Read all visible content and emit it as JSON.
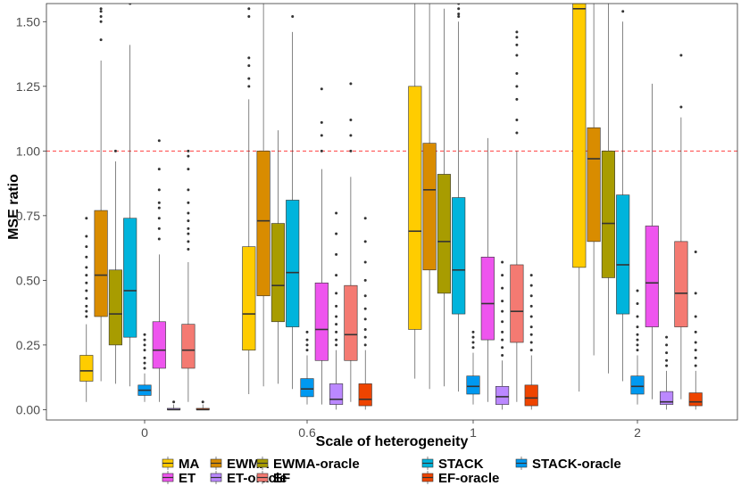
{
  "chart_data": {
    "type": "boxplot",
    "xlabel": "Scale of heterogeneity",
    "ylabel": "MSE ratio",
    "ylim": [
      -0.04,
      1.57
    ],
    "yticks": [
      "0.00",
      "0.25",
      "0.50",
      "0.75",
      "1.00",
      "1.25",
      "1.50"
    ],
    "ytick_values": [
      0,
      0.25,
      0.5,
      0.75,
      1.0,
      1.25,
      1.5
    ],
    "categories": [
      "0",
      "0.6",
      "1",
      "2"
    ],
    "reference_line": {
      "y": 1.0,
      "color": "#ff0000",
      "style": "dashed"
    },
    "legend_position": "bottom",
    "series": [
      {
        "name": "MA",
        "color": "#FFCC00",
        "boxes": [
          {
            "q1": 0.11,
            "median": 0.15,
            "q3": 0.21,
            "wlo": 0.03,
            "whi": 0.33,
            "out": [
              0.36,
              0.38,
              0.4,
              0.43,
              0.46,
              0.49,
              0.52,
              0.55,
              0.59,
              0.63,
              0.67,
              0.74
            ]
          },
          {
            "q1": 0.23,
            "median": 0.37,
            "q3": 0.63,
            "wlo": 0.06,
            "whi": 1.2,
            "out": [
              1.25,
              1.28,
              1.33,
              1.36,
              1.52,
              1.55
            ]
          },
          {
            "q1": 0.31,
            "median": 0.69,
            "q3": 1.25,
            "wlo": 0.12,
            "whi": 1.57,
            "out": []
          },
          {
            "q1": 0.55,
            "median": 1.55,
            "q3": 1.57,
            "wlo": 0.07,
            "whi": 1.57,
            "out": []
          }
        ]
      },
      {
        "name": "EWMA",
        "color": "#D98C00",
        "boxes": [
          {
            "q1": 0.36,
            "median": 0.52,
            "q3": 0.77,
            "wlo": 0.11,
            "whi": 1.35,
            "out": [
              1.43,
              1.5,
              1.52,
              1.54,
              1.55
            ]
          },
          {
            "q1": 0.44,
            "median": 0.73,
            "q3": 1.0,
            "wlo": 0.09,
            "whi": 1.57,
            "out": []
          },
          {
            "q1": 0.54,
            "median": 0.85,
            "q3": 1.03,
            "wlo": 0.08,
            "whi": 1.57,
            "out": []
          },
          {
            "q1": 0.65,
            "median": 0.97,
            "q3": 1.09,
            "wlo": 0.21,
            "whi": 1.57,
            "out": []
          }
        ]
      },
      {
        "name": "EWMA-oracle",
        "color": "#A89C00",
        "boxes": [
          {
            "q1": 0.25,
            "median": 0.37,
            "q3": 0.54,
            "wlo": 0.1,
            "whi": 0.96,
            "out": [
              1.0
            ]
          },
          {
            "q1": 0.34,
            "median": 0.48,
            "q3": 0.72,
            "wlo": 0.1,
            "whi": 1.08,
            "out": []
          },
          {
            "q1": 0.45,
            "median": 0.65,
            "q3": 0.91,
            "wlo": 0.09,
            "whi": 1.55,
            "out": []
          },
          {
            "q1": 0.51,
            "median": 0.72,
            "q3": 1.0,
            "wlo": 0.14,
            "whi": 1.57,
            "out": []
          }
        ]
      },
      {
        "name": "STACK",
        "color": "#00B4DC",
        "boxes": [
          {
            "q1": 0.28,
            "median": 0.46,
            "q3": 0.74,
            "wlo": 0.09,
            "whi": 1.41,
            "out": [
              1.57
            ]
          },
          {
            "q1": 0.32,
            "median": 0.53,
            "q3": 0.81,
            "wlo": 0.08,
            "whi": 1.46,
            "out": [
              1.52
            ]
          },
          {
            "q1": 0.37,
            "median": 0.54,
            "q3": 0.82,
            "wlo": 0.07,
            "whi": 1.5,
            "out": [
              1.52,
              1.53,
              1.55,
              1.57
            ]
          },
          {
            "q1": 0.37,
            "median": 0.56,
            "q3": 0.83,
            "wlo": 0.11,
            "whi": 1.5,
            "out": [
              1.54
            ]
          }
        ]
      },
      {
        "name": "STACK-oracle",
        "color": "#0099F0",
        "boxes": [
          {
            "q1": 0.055,
            "median": 0.075,
            "q3": 0.095,
            "wlo": 0.03,
            "whi": 0.14,
            "out": [
              0.16,
              0.18,
              0.2,
              0.23,
              0.25,
              0.27,
              0.29
            ]
          },
          {
            "q1": 0.05,
            "median": 0.08,
            "q3": 0.12,
            "wlo": 0.02,
            "whi": 0.21,
            "out": [
              0.23,
              0.25,
              0.27,
              0.3
            ]
          },
          {
            "q1": 0.06,
            "median": 0.09,
            "q3": 0.13,
            "wlo": 0.02,
            "whi": 0.22,
            "out": [
              0.24,
              0.26,
              0.28,
              0.3
            ]
          },
          {
            "q1": 0.06,
            "median": 0.09,
            "q3": 0.13,
            "wlo": 0.02,
            "whi": 0.21,
            "out": [
              0.23,
              0.25,
              0.27,
              0.29,
              0.32,
              0.36,
              0.41,
              0.46
            ]
          }
        ]
      },
      {
        "name": "ET",
        "color": "#EE55EE",
        "boxes": [
          {
            "q1": 0.16,
            "median": 0.23,
            "q3": 0.34,
            "wlo": 0.03,
            "whi": 0.6,
            "out": [
              0.66,
              0.7,
              0.74,
              0.78,
              0.8,
              0.85,
              0.93,
              1.04
            ]
          },
          {
            "q1": 0.19,
            "median": 0.31,
            "q3": 0.49,
            "wlo": 0.02,
            "whi": 0.93,
            "out": [
              1.0,
              1.06,
              1.11,
              1.24
            ]
          },
          {
            "q1": 0.27,
            "median": 0.41,
            "q3": 0.59,
            "wlo": 0.03,
            "whi": 1.05,
            "out": []
          },
          {
            "q1": 0.32,
            "median": 0.49,
            "q3": 0.71,
            "wlo": 0.04,
            "whi": 1.26,
            "out": []
          }
        ]
      },
      {
        "name": "ET-oracle",
        "color": "#BB88FF",
        "boxes": [
          {
            "q1": 0.0,
            "median": 0.0,
            "q3": 0.005,
            "wlo": 0.0,
            "whi": 0.02,
            "out": [
              0.03
            ]
          },
          {
            "q1": 0.02,
            "median": 0.04,
            "q3": 0.1,
            "wlo": 0.0,
            "whi": 0.23,
            "out": [
              0.25,
              0.27,
              0.3,
              0.33,
              0.36,
              0.4,
              0.45,
              0.52,
              0.6,
              0.68,
              0.76
            ]
          },
          {
            "q1": 0.02,
            "median": 0.05,
            "q3": 0.09,
            "wlo": 0.0,
            "whi": 0.19,
            "out": [
              0.21,
              0.24,
              0.27,
              0.3,
              0.34,
              0.38,
              0.42,
              0.47,
              0.52,
              0.57
            ]
          },
          {
            "q1": 0.02,
            "median": 0.03,
            "q3": 0.07,
            "wlo": 0.0,
            "whi": 0.15,
            "out": [
              0.17,
              0.19,
              0.22,
              0.25,
              0.28
            ]
          }
        ]
      },
      {
        "name": "EF",
        "color": "#F47A72",
        "boxes": [
          {
            "q1": 0.16,
            "median": 0.23,
            "q3": 0.33,
            "wlo": 0.03,
            "whi": 0.57,
            "out": [
              0.62,
              0.65,
              0.68,
              0.7,
              0.73,
              0.76,
              0.8,
              0.85,
              0.93,
              0.98,
              1.0
            ]
          },
          {
            "q1": 0.19,
            "median": 0.29,
            "q3": 0.48,
            "wlo": 0.03,
            "whi": 0.9,
            "out": [
              1.0,
              1.06,
              1.12,
              1.26
            ]
          },
          {
            "q1": 0.26,
            "median": 0.38,
            "q3": 0.56,
            "wlo": 0.03,
            "whi": 1.0,
            "out": [
              1.07,
              1.12,
              1.2,
              1.25,
              1.3,
              1.37,
              1.41,
              1.44,
              1.46
            ]
          },
          {
            "q1": 0.32,
            "median": 0.45,
            "q3": 0.65,
            "wlo": 0.04,
            "whi": 1.13,
            "out": [
              1.17,
              1.37
            ]
          }
        ]
      },
      {
        "name": "EF-oracle",
        "color": "#EE4400",
        "boxes": [
          {
            "q1": 0.0,
            "median": 0.0,
            "q3": 0.005,
            "wlo": 0.0,
            "whi": 0.02,
            "out": [
              0.03
            ]
          },
          {
            "q1": 0.015,
            "median": 0.04,
            "q3": 0.1,
            "wlo": 0.0,
            "whi": 0.23,
            "out": [
              0.25,
              0.28,
              0.31,
              0.35,
              0.39,
              0.44,
              0.5,
              0.57,
              0.65,
              0.74
            ]
          },
          {
            "q1": 0.015,
            "median": 0.045,
            "q3": 0.095,
            "wlo": 0.0,
            "whi": 0.21,
            "out": [
              0.23,
              0.26,
              0.29,
              0.32,
              0.36,
              0.4,
              0.44,
              0.48,
              0.52
            ]
          },
          {
            "q1": 0.015,
            "median": 0.03,
            "q3": 0.065,
            "wlo": 0.0,
            "whi": 0.15,
            "out": [
              0.17,
              0.2,
              0.23,
              0.26,
              0.3,
              0.36,
              0.45,
              0.61
            ]
          }
        ]
      }
    ],
    "legend_rows": [
      [
        "MA",
        "EWMA",
        "EWMA-oracle",
        "STACK",
        "STACK-oracle"
      ],
      [
        "ET",
        "ET-oracle",
        "EF",
        "EF-oracle"
      ]
    ]
  }
}
